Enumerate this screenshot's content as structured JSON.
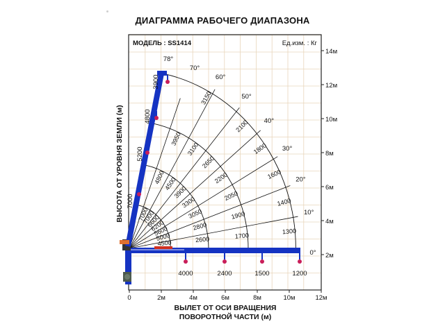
{
  "title": "ДИАГРАММА РАБОЧЕГО ДИАПАЗОНА",
  "model": "МОДЕЛЬ : SS1414",
  "units": "Ед.изм. : Кг",
  "ylabel": "ВЫСОТА ОТ УРОВНЯ ЗЕМЛИ (м)",
  "xlabel_line1": "ВЫЛЕТ ОТ ОСИ ВРАЩЕНИЯ",
  "xlabel_line2": "ПОВОРОТНОЙ ЧАСТИ (м)",
  "x_ticks": [
    "0",
    "2м",
    "4м",
    "6м",
    "8м",
    "10м",
    "12м"
  ],
  "y_ticks": [
    "2м",
    "4м",
    "6м",
    "8м",
    "10м",
    "12м",
    "14м"
  ],
  "angles": [
    "0°",
    "10°",
    "20°",
    "30°",
    "40°",
    "50°",
    "60°",
    "70°",
    "78°"
  ],
  "arc_labels": [
    [
      "4500",
      "5000",
      "5600",
      "6200",
      "6600",
      "7000",
      "7000"
    ],
    [
      "2600",
      "2800",
      "3050",
      "3300",
      "3900",
      "4500",
      "4800"
    ],
    [
      "1700",
      "1900",
      "2050",
      "2200",
      "2650",
      "3100",
      "3950"
    ],
    [
      "1300",
      "1400",
      "1600",
      "1800",
      "2100",
      "3150"
    ]
  ],
  "boom_labels_vertical": [
    "7000",
    "5200",
    "4800",
    "3900"
  ],
  "boom_labels_horizontal": [
    "4000",
    "2400",
    "1500",
    "1200"
  ],
  "colors": {
    "boom": "#1533c2",
    "hook": "#c81e5a",
    "grid": "#e8d6bb",
    "frame": "#222222"
  },
  "chart_data": {
    "type": "diagram",
    "x_range_m": [
      0,
      12
    ],
    "y_range_m": [
      0,
      14
    ],
    "boom_max_angle_deg": 78,
    "angle_lines_deg": [
      0,
      10,
      20,
      30,
      40,
      50,
      60,
      70,
      78
    ],
    "radii_m": [
      2.6,
      5.0,
      7.5,
      10.5
    ]
  }
}
